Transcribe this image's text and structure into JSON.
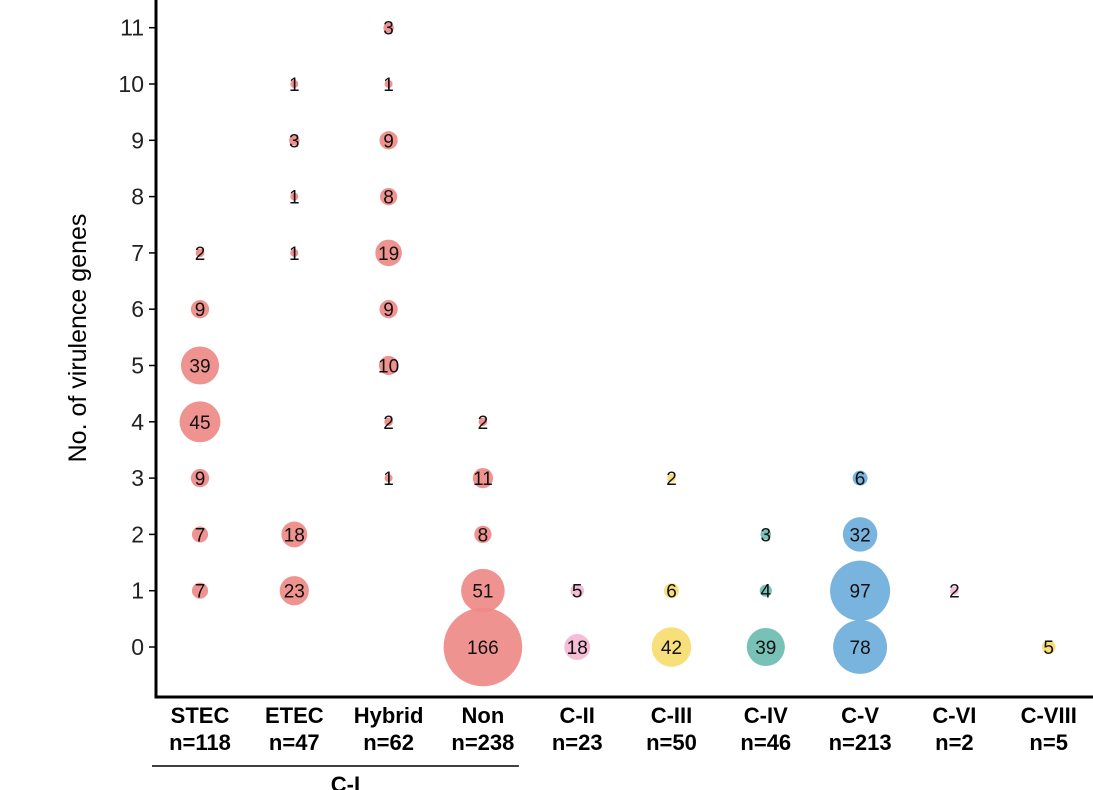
{
  "chart_data": {
    "type": "scatter",
    "subtype": "bubble",
    "ylabel": "No. of virulence genes",
    "y_ticks": [
      "0",
      "1",
      "2",
      "3",
      "4",
      "5",
      "6",
      "7",
      "8",
      "9",
      "10",
      "11"
    ],
    "ylim": [
      -0.8,
      11.1
    ],
    "categories": [
      {
        "name": "STEC",
        "n": "n=118",
        "color": "#ee8a87"
      },
      {
        "name": "ETEC",
        "n": "n=47",
        "color": "#ee8a87"
      },
      {
        "name": "Hybrid",
        "n": "n=62",
        "color": "#ee8a87"
      },
      {
        "name": "Non",
        "n": "n=238",
        "color": "#ee8a87"
      },
      {
        "name": "C-II",
        "n": "n=23",
        "color": "#f2b8d2"
      },
      {
        "name": "C-III",
        "n": "n=50",
        "color": "#f6dc6e"
      },
      {
        "name": "C-IV",
        "n": "n=46",
        "color": "#6cbcb0"
      },
      {
        "name": "C-V",
        "n": "n=213",
        "color": "#6eaedb"
      },
      {
        "name": "C-VI",
        "n": "n=2",
        "color": "#f2b8d2"
      },
      {
        "name": "C-VIII",
        "n": "n=5",
        "color": "#f6dc6e"
      }
    ],
    "group_label": "C-I",
    "group_members": [
      "STEC",
      "ETEC",
      "Hybrid",
      "Non"
    ],
    "points": [
      {
        "category": "STEC",
        "y": 7,
        "count": 2
      },
      {
        "category": "STEC",
        "y": 6,
        "count": 9
      },
      {
        "category": "STEC",
        "y": 5,
        "count": 39
      },
      {
        "category": "STEC",
        "y": 4,
        "count": 45
      },
      {
        "category": "STEC",
        "y": 3,
        "count": 9
      },
      {
        "category": "STEC",
        "y": 2,
        "count": 7
      },
      {
        "category": "STEC",
        "y": 1,
        "count": 7
      },
      {
        "category": "ETEC",
        "y": 10,
        "count": 1
      },
      {
        "category": "ETEC",
        "y": 9,
        "count": 3
      },
      {
        "category": "ETEC",
        "y": 8,
        "count": 1
      },
      {
        "category": "ETEC",
        "y": 7,
        "count": 1
      },
      {
        "category": "ETEC",
        "y": 2,
        "count": 18
      },
      {
        "category": "ETEC",
        "y": 1,
        "count": 23
      },
      {
        "category": "Hybrid",
        "y": 11,
        "count": 3
      },
      {
        "category": "Hybrid",
        "y": 10,
        "count": 1
      },
      {
        "category": "Hybrid",
        "y": 9,
        "count": 9
      },
      {
        "category": "Hybrid",
        "y": 8,
        "count": 8
      },
      {
        "category": "Hybrid",
        "y": 7,
        "count": 19
      },
      {
        "category": "Hybrid",
        "y": 6,
        "count": 9
      },
      {
        "category": "Hybrid",
        "y": 5,
        "count": 10
      },
      {
        "category": "Hybrid",
        "y": 4,
        "count": 2
      },
      {
        "category": "Hybrid",
        "y": 3,
        "count": 1
      },
      {
        "category": "Non",
        "y": 4,
        "count": 2
      },
      {
        "category": "Non",
        "y": 3,
        "count": 11
      },
      {
        "category": "Non",
        "y": 2,
        "count": 8
      },
      {
        "category": "Non",
        "y": 1,
        "count": 51
      },
      {
        "category": "Non",
        "y": 0,
        "count": 166
      },
      {
        "category": "C-II",
        "y": 1,
        "count": 5
      },
      {
        "category": "C-II",
        "y": 0,
        "count": 18
      },
      {
        "category": "C-III",
        "y": 3,
        "count": 2
      },
      {
        "category": "C-III",
        "y": 1,
        "count": 6
      },
      {
        "category": "C-III",
        "y": 0,
        "count": 42
      },
      {
        "category": "C-IV",
        "y": 2,
        "count": 3
      },
      {
        "category": "C-IV",
        "y": 1,
        "count": 4
      },
      {
        "category": "C-IV",
        "y": 0,
        "count": 39
      },
      {
        "category": "C-V",
        "y": 3,
        "count": 6
      },
      {
        "category": "C-V",
        "y": 2,
        "count": 32
      },
      {
        "category": "C-V",
        "y": 1,
        "count": 97
      },
      {
        "category": "C-V",
        "y": 0,
        "count": 78
      },
      {
        "category": "C-VI",
        "y": 1,
        "count": 2
      },
      {
        "category": "C-VIII",
        "y": 0,
        "count": 5
      }
    ]
  }
}
